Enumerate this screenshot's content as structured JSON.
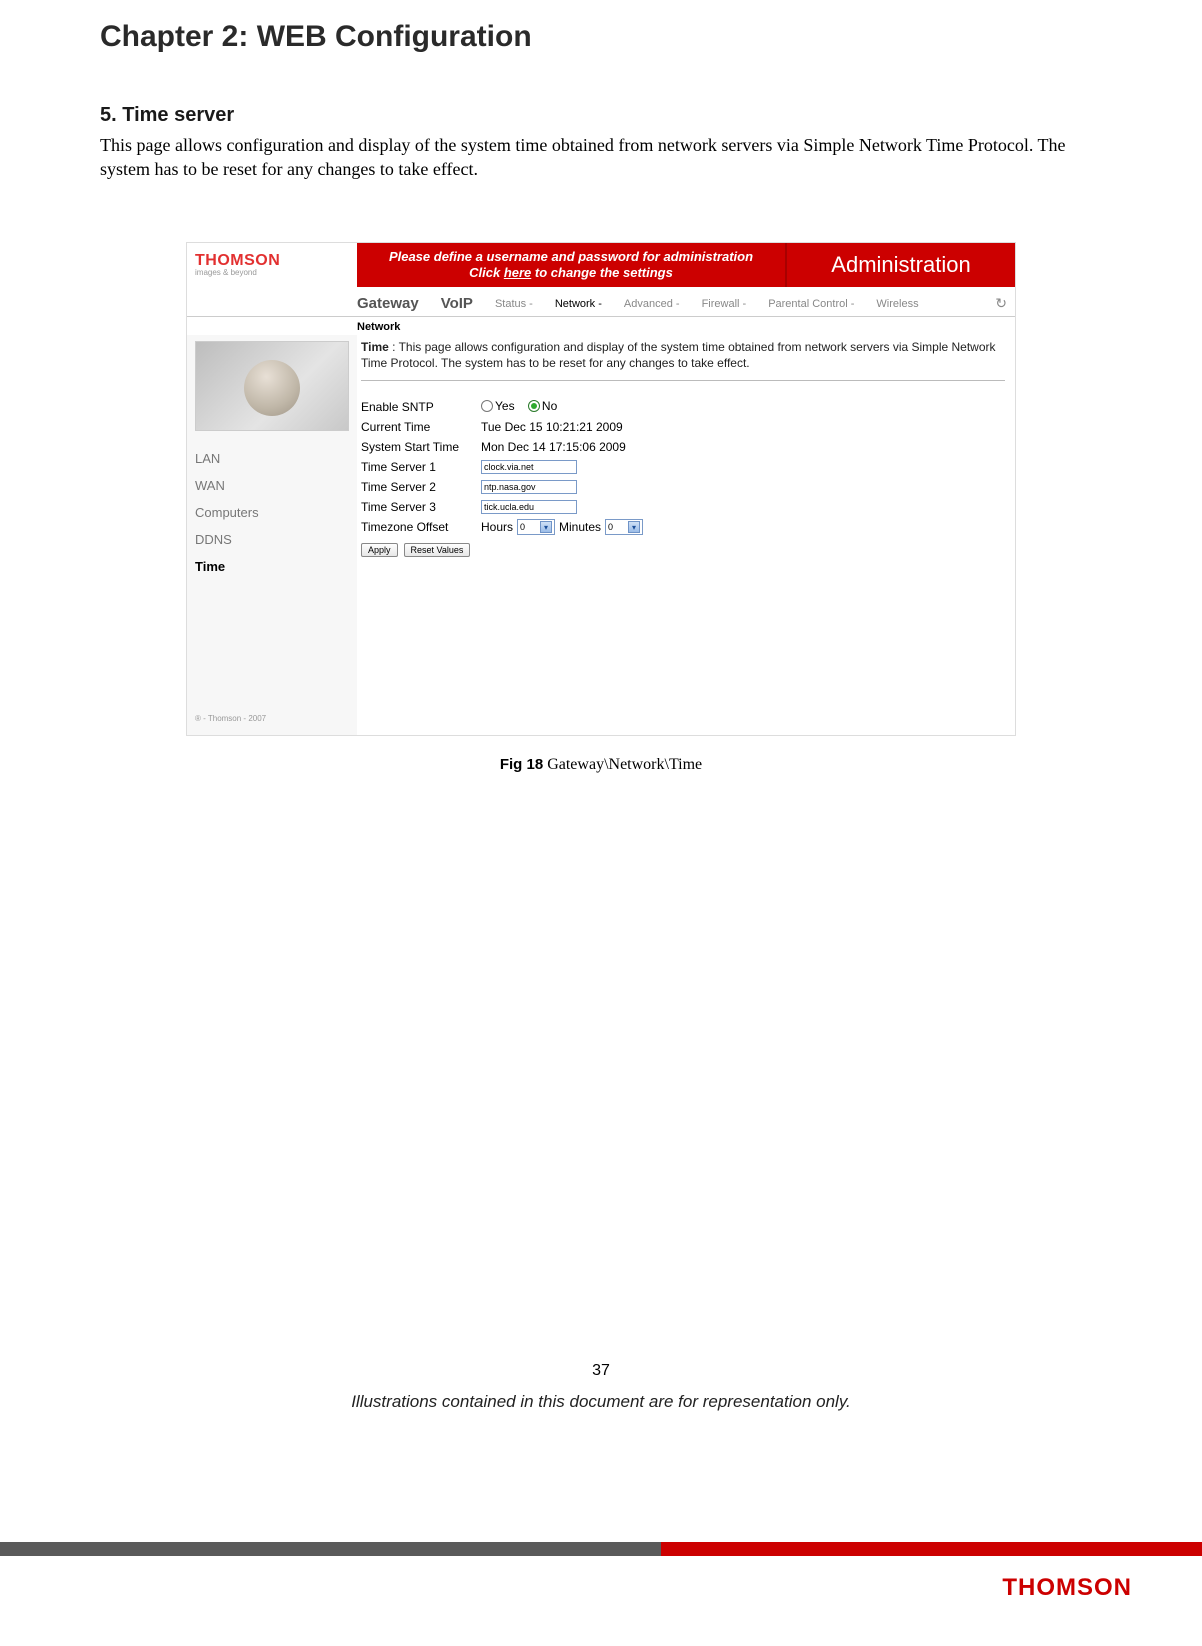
{
  "chapter_title": "Chapter 2: WEB Configuration",
  "section_title": "5. Time server",
  "section_body": "This page allows configuration and display of the system time obtained from network servers via Simple Network Time Protocol. The system has to be reset for any changes to take effect.",
  "screenshot": {
    "logo_brand": "THOMSON",
    "logo_tag": "images & beyond",
    "banner_line1": "Please define a username and password for administration",
    "banner_line2_pre": "Click ",
    "banner_line2_link": "here",
    "banner_line2_post": " to change the settings",
    "admin_label": "Administration",
    "tabs": {
      "gateway": "Gateway",
      "voip": "VoIP",
      "crumbs": [
        "Status -",
        "Network -",
        "Advanced -",
        "Firewall -",
        "Parental Control -",
        "Wireless"
      ],
      "selected_crumb_index": 1
    },
    "section_label": "Network",
    "sidebar": {
      "items": [
        "LAN",
        "WAN",
        "Computers",
        "DDNS",
        "Time"
      ],
      "selected_index": 4,
      "copyright": "® - Thomson - 2007"
    },
    "desc_bold": "Time",
    "desc_rest": " : This page allows configuration and display of the system time obtained from network servers via Simple Network Time Protocol. The system has to be reset for any changes to take effect.",
    "rows": {
      "enable_sntp_label": "Enable SNTP",
      "yes": "Yes",
      "no": "No",
      "sntp_selected": "No",
      "current_time_label": "Current Time",
      "current_time_value": "Tue Dec 15 10:21:21 2009",
      "start_time_label": "System Start Time",
      "start_time_value": "Mon Dec 14 17:15:06 2009",
      "ts1_label": "Time Server 1",
      "ts1_value": "clock.via.net",
      "ts2_label": "Time Server 2",
      "ts2_value": "ntp.nasa.gov",
      "ts3_label": "Time Server 3",
      "ts3_value": "tick.ucla.edu",
      "tz_label": "Timezone Offset",
      "hours_label": "Hours",
      "hours_value": "0",
      "minutes_label": "Minutes",
      "minutes_value": "0"
    },
    "buttons": {
      "apply": "Apply",
      "reset": "Reset Values"
    }
  },
  "figure_caption_prefix": "Fig 18",
  "figure_caption_rest": " Gateway\\Network\\Time",
  "page_number": "37",
  "disclaimer": "Illustrations contained in this document are for representation only.",
  "footer_logo": "THOMSON",
  "colors": {
    "accent_red": "#cc0000",
    "grey_bar": "#5a5a5a"
  }
}
